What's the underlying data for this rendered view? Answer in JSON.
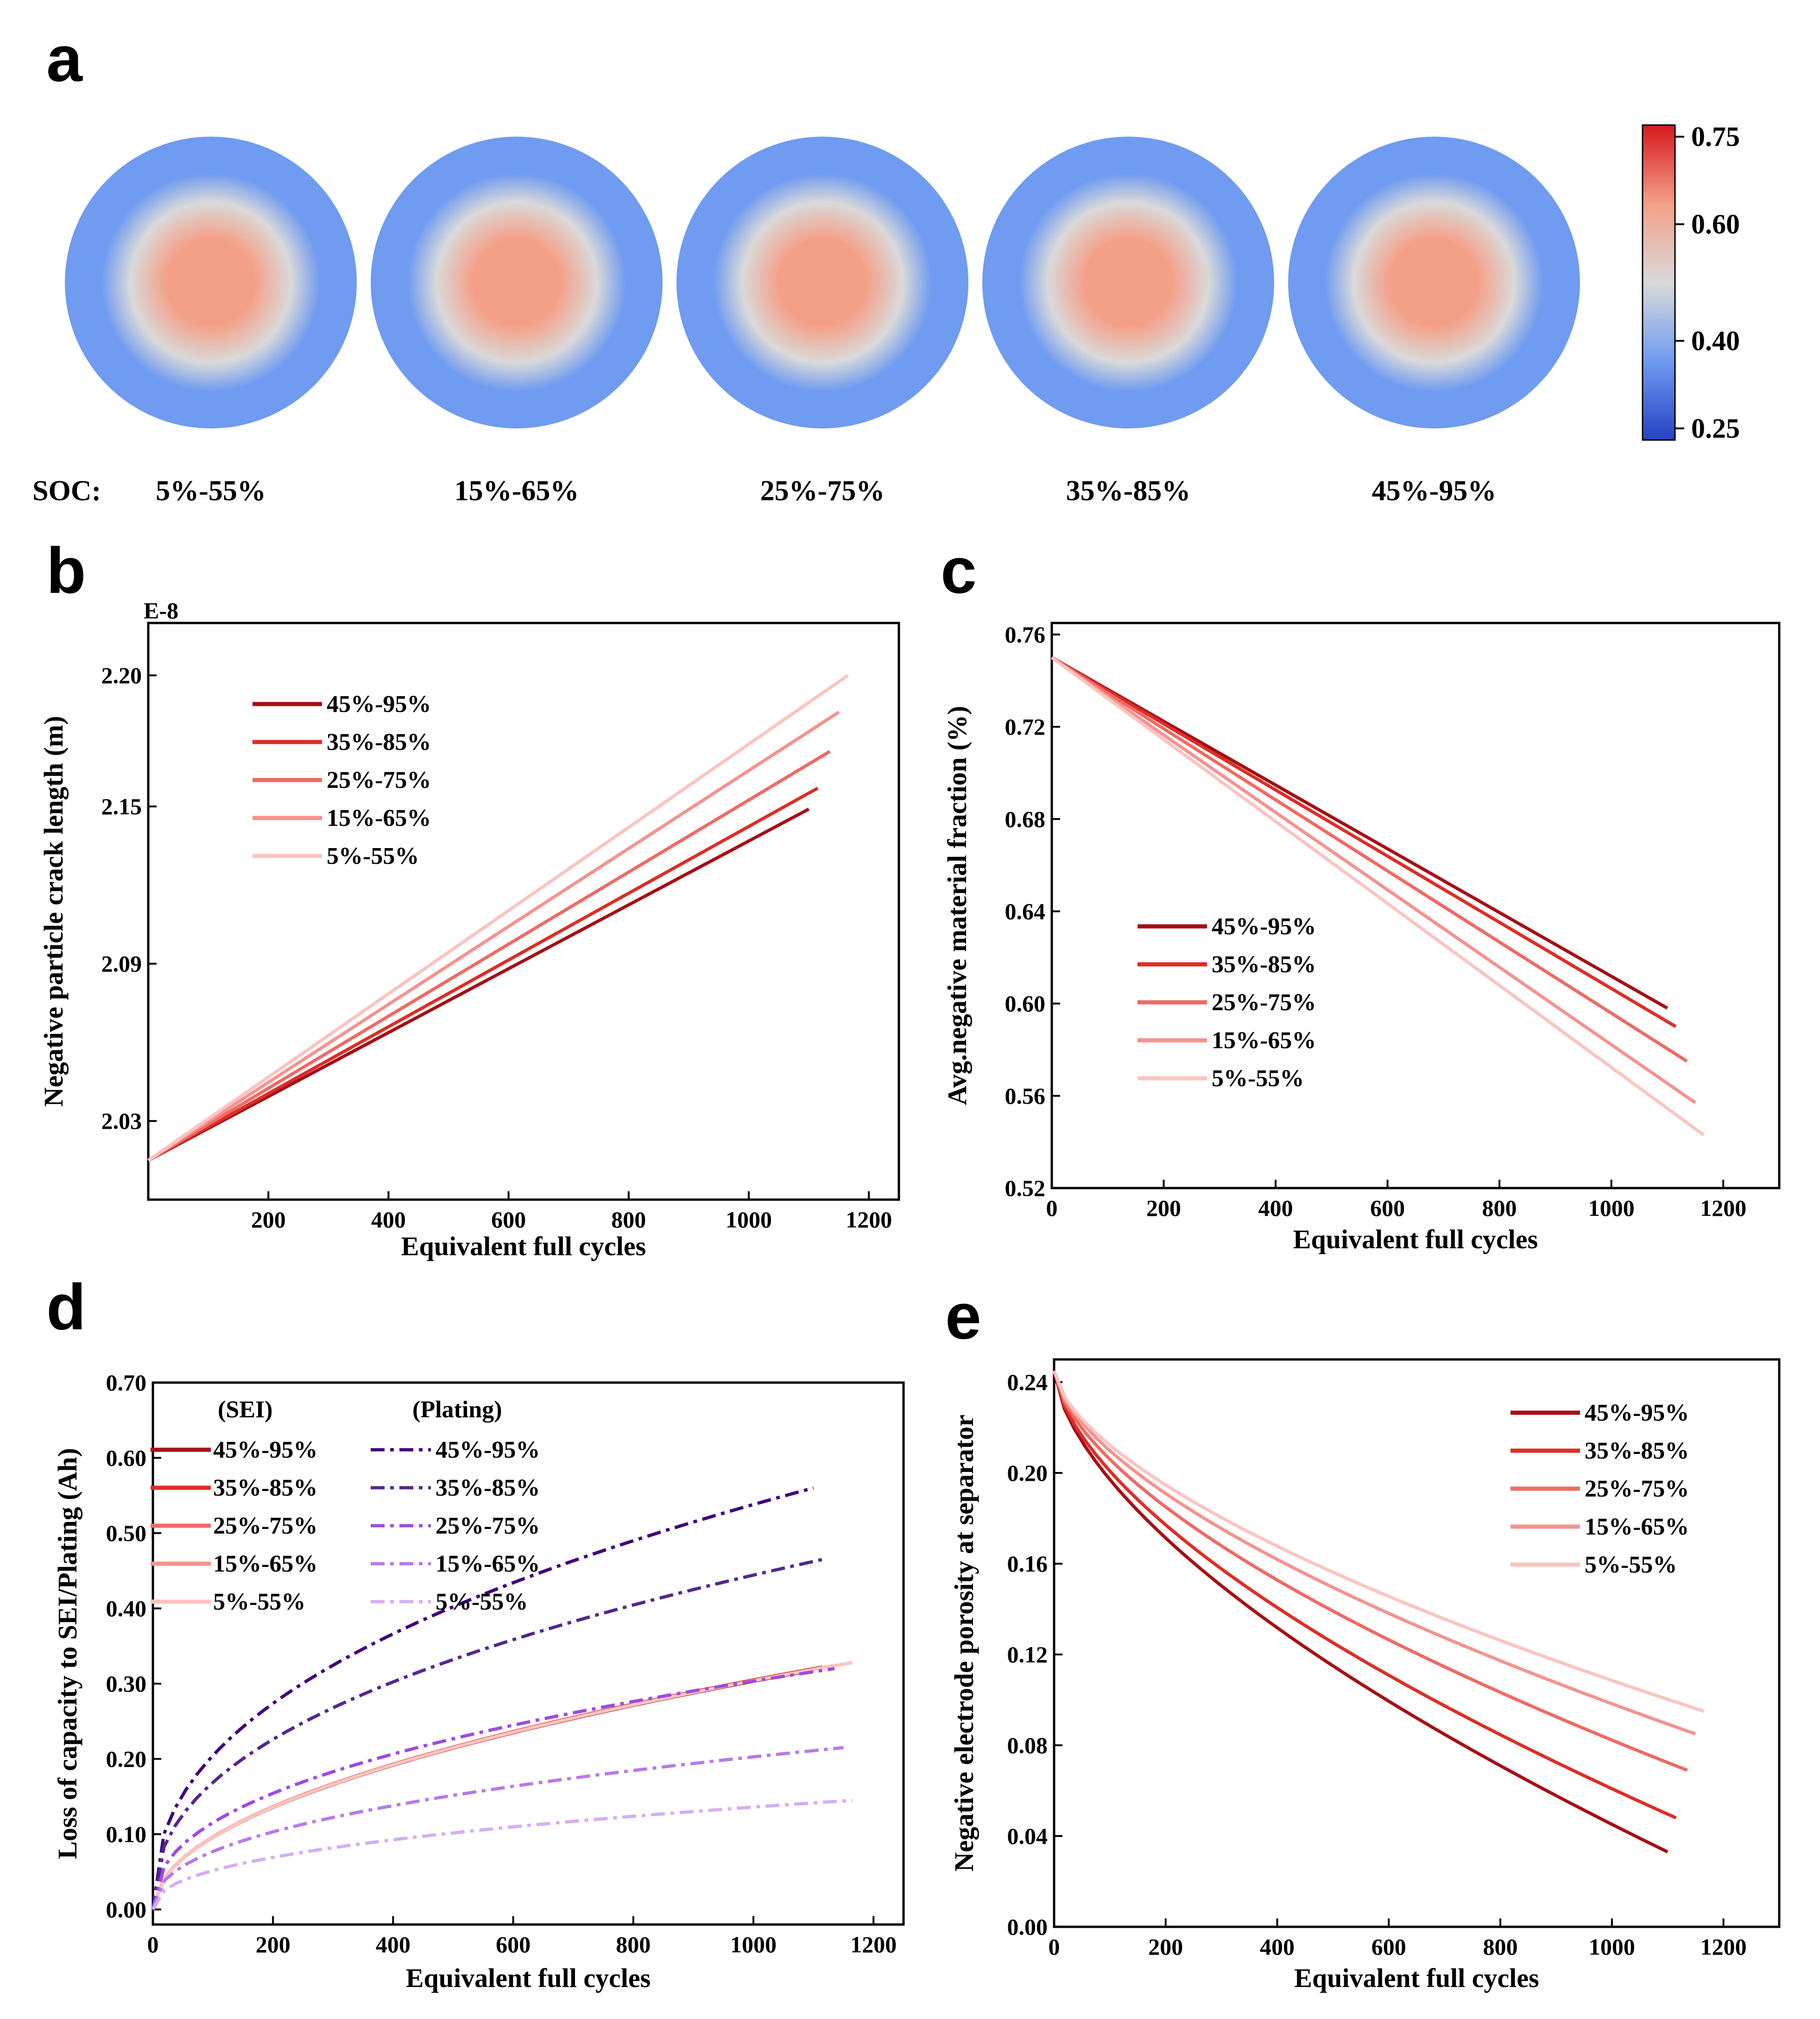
{
  "panels": {
    "a": {
      "label": "a"
    },
    "b": {
      "label": "b"
    },
    "c": {
      "label": "c"
    },
    "d": {
      "label": "d"
    },
    "e": {
      "label": "e"
    }
  },
  "panel_a": {
    "soc_prefix": "SOC:",
    "particles": [
      "5%-55%",
      "15%-65%",
      "25%-75%",
      "35%-85%",
      "45%-95%"
    ],
    "center_value": [
      0.66,
      0.64,
      0.63,
      0.62,
      0.61
    ],
    "colorbar": {
      "ticks": [
        "0.75",
        "0.60",
        "0.40",
        "0.25"
      ],
      "tick_values": [
        0.75,
        0.6,
        0.4,
        0.25
      ],
      "min": 0.23,
      "max": 0.77,
      "colors": [
        "#2443c4",
        "#6f9bf0",
        "#d9d9d9",
        "#f4a088",
        "#d7191c"
      ]
    }
  },
  "chart_data": [
    {
      "id": "b",
      "type": "line",
      "xlabel": "Equivalent full cycles",
      "ylabel": "Negative particle crack length (m)",
      "y_exponent_label": "E-8",
      "xlim": [
        0,
        1250
      ],
      "ylim": [
        2.0,
        2.22
      ],
      "xticks": [
        "200",
        "400",
        "600",
        "800",
        "1000",
        "1200"
      ],
      "xtick_values": [
        200,
        400,
        600,
        800,
        1000,
        1200
      ],
      "yticks": [
        "2.03",
        "2.09",
        "2.15",
        "2.20"
      ],
      "ytick_values": [
        2.03,
        2.09,
        2.15,
        2.2
      ],
      "legend_position": "top-left",
      "series": [
        {
          "name": "45%-95%",
          "color": "#a50f15",
          "x": [
            0,
            1100
          ],
          "y": [
            2.015,
            2.149
          ]
        },
        {
          "name": "35%-85%",
          "color": "#de2d26",
          "x": [
            0,
            1115
          ],
          "y": [
            2.015,
            2.157
          ]
        },
        {
          "name": "25%-75%",
          "color": "#ef6a64",
          "x": [
            0,
            1135
          ],
          "y": [
            2.015,
            2.171
          ]
        },
        {
          "name": "15%-65%",
          "color": "#f4938f",
          "x": [
            0,
            1150
          ],
          "y": [
            2.015,
            2.186
          ]
        },
        {
          "name": "5%-55%",
          "color": "#fbc4c0",
          "x": [
            0,
            1165
          ],
          "y": [
            2.015,
            2.2
          ]
        }
      ]
    },
    {
      "id": "c",
      "type": "line",
      "xlabel": "Equivalent full cycles",
      "ylabel": "Avg.negative material fraction (%)",
      "xlim": [
        0,
        1300
      ],
      "ylim": [
        0.52,
        0.765
      ],
      "xticks": [
        "0",
        "200",
        "400",
        "600",
        "800",
        "1000",
        "1200"
      ],
      "xtick_values": [
        0,
        200,
        400,
        600,
        800,
        1000,
        1200
      ],
      "yticks": [
        "0.52",
        "0.56",
        "0.60",
        "0.64",
        "0.68",
        "0.72",
        "0.76"
      ],
      "ytick_values": [
        0.52,
        0.56,
        0.6,
        0.64,
        0.68,
        0.72,
        0.76
      ],
      "legend_position": "lower-left",
      "series": [
        {
          "name": "45%-95%",
          "color": "#a50f15",
          "x": [
            0,
            1100
          ],
          "y": [
            0.75,
            0.598
          ]
        },
        {
          "name": "35%-85%",
          "color": "#de2d26",
          "x": [
            0,
            1115
          ],
          "y": [
            0.75,
            0.59
          ]
        },
        {
          "name": "25%-75%",
          "color": "#ef6a64",
          "x": [
            0,
            1135
          ],
          "y": [
            0.75,
            0.575
          ]
        },
        {
          "name": "15%-65%",
          "color": "#f4938f",
          "x": [
            0,
            1150
          ],
          "y": [
            0.75,
            0.557
          ]
        },
        {
          "name": "5%-55%",
          "color": "#fbc4c0",
          "x": [
            0,
            1165
          ],
          "y": [
            0.75,
            0.543
          ]
        }
      ]
    },
    {
      "id": "d",
      "type": "line",
      "xlabel": "Equivalent full cycles",
      "ylabel": "Loss of capacity to SEI/Plating (Ah)",
      "xlim": [
        0,
        1250
      ],
      "ylim": [
        -0.02,
        0.7
      ],
      "xticks": [
        "0",
        "200",
        "400",
        "600",
        "800",
        "1000",
        "1200"
      ],
      "xtick_values": [
        0,
        200,
        400,
        600,
        800,
        1000,
        1200
      ],
      "yticks": [
        "0.00",
        "0.10",
        "0.20",
        "0.30",
        "0.40",
        "0.50",
        "0.60",
        "0.70"
      ],
      "ytick_values": [
        0,
        0.1,
        0.2,
        0.3,
        0.4,
        0.5,
        0.6,
        0.7
      ],
      "legend_position": "top-left",
      "legend_headers": [
        "(SEI)",
        "(Plating)"
      ],
      "sei_series": [
        {
          "name": "45%-95%",
          "color": "#a50f15",
          "end_x": 1100,
          "end_y": 0.318
        },
        {
          "name": "35%-85%",
          "color": "#de2d26",
          "end_x": 1115,
          "end_y": 0.322
        },
        {
          "name": "25%-75%",
          "color": "#ef6a64",
          "end_x": 1135,
          "end_y": 0.324
        },
        {
          "name": "15%-65%",
          "color": "#f4938f",
          "end_x": 1150,
          "end_y": 0.326
        },
        {
          "name": "5%-55%",
          "color": "#fbc4c0",
          "end_x": 1165,
          "end_y": 0.328
        }
      ],
      "plating_series": [
        {
          "name": "45%-95%",
          "color": "#3f007d",
          "end_x": 1100,
          "end_y": 0.56
        },
        {
          "name": "35%-85%",
          "color": "#54278f",
          "end_x": 1115,
          "end_y": 0.465
        },
        {
          "name": "25%-75%",
          "color": "#9e4ae0",
          "end_x": 1135,
          "end_y": 0.32
        },
        {
          "name": "15%-65%",
          "color": "#b77ae8",
          "end_x": 1150,
          "end_y": 0.215
        },
        {
          "name": "5%-55%",
          "color": "#d5aef2",
          "end_x": 1165,
          "end_y": 0.145
        }
      ]
    },
    {
      "id": "e",
      "type": "line",
      "xlabel": "Equivalent full cycles",
      "ylabel": "Negative electrode porosity at separator",
      "xlim": [
        0,
        1300
      ],
      "ylim": [
        0.0,
        0.25
      ],
      "xticks": [
        "0",
        "200",
        "400",
        "600",
        "800",
        "1000",
        "1200"
      ],
      "xtick_values": [
        0,
        200,
        400,
        600,
        800,
        1000,
        1200
      ],
      "yticks": [
        "0.00",
        "0.04",
        "0.08",
        "0.12",
        "0.16",
        "0.20",
        "0.24"
      ],
      "ytick_values": [
        0,
        0.04,
        0.08,
        0.12,
        0.16,
        0.2,
        0.24
      ],
      "legend_position": "top-right",
      "series": [
        {
          "name": "45%-95%",
          "color": "#a50f15",
          "start_y": 0.245,
          "end_x": 1100,
          "end_y": 0.033
        },
        {
          "name": "35%-85%",
          "color": "#de2d26",
          "start_y": 0.245,
          "end_x": 1115,
          "end_y": 0.048
        },
        {
          "name": "25%-75%",
          "color": "#ef6a64",
          "start_y": 0.245,
          "end_x": 1135,
          "end_y": 0.069
        },
        {
          "name": "15%-65%",
          "color": "#f4938f",
          "start_y": 0.245,
          "end_x": 1150,
          "end_y": 0.085
        },
        {
          "name": "5%-55%",
          "color": "#fbc4c0",
          "start_y": 0.245,
          "end_x": 1165,
          "end_y": 0.095
        }
      ]
    }
  ]
}
